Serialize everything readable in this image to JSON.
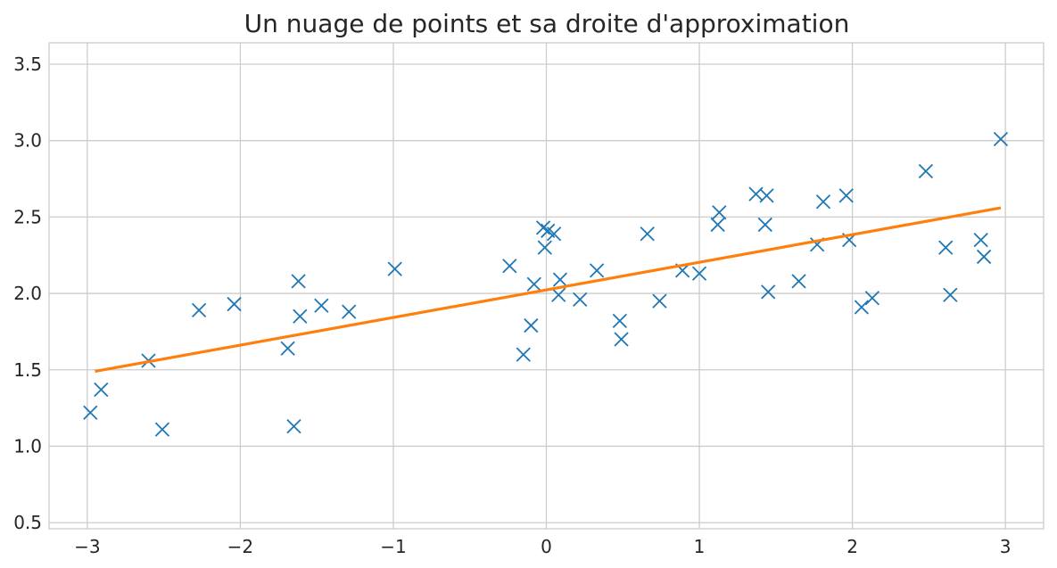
{
  "chart_data": {
    "type": "scatter",
    "title": "Un nuage de points et sa droite d'approximation",
    "xlabel": "",
    "ylabel": "",
    "xlim": [
      -3.25,
      3.25
    ],
    "ylim": [
      0.46,
      3.64
    ],
    "x_ticks": [
      -3,
      -2,
      -1,
      0,
      1,
      2,
      3
    ],
    "x_tick_labels": [
      "−3",
      "−2",
      "−1",
      "0",
      "1",
      "2",
      "3"
    ],
    "y_ticks": [
      0.5,
      1.0,
      1.5,
      2.0,
      2.5,
      3.0,
      3.5
    ],
    "y_tick_labels": [
      "0.5",
      "1.0",
      "1.5",
      "2.0",
      "2.5",
      "3.0",
      "3.5"
    ],
    "grid": true,
    "series": [
      {
        "kind": "scatter",
        "marker": "x",
        "color": "#1f77b4",
        "points": [
          [
            -2.98,
            1.22
          ],
          [
            -2.91,
            1.37
          ],
          [
            -2.6,
            1.56
          ],
          [
            -2.51,
            1.11
          ],
          [
            -2.27,
            1.89
          ],
          [
            -2.04,
            1.93
          ],
          [
            -1.69,
            1.64
          ],
          [
            -1.65,
            1.13
          ],
          [
            -1.62,
            2.08
          ],
          [
            -1.61,
            1.85
          ],
          [
            -1.47,
            1.92
          ],
          [
            -1.29,
            1.88
          ],
          [
            -0.99,
            2.16
          ],
          [
            -0.24,
            2.18
          ],
          [
            -0.15,
            1.6
          ],
          [
            -0.1,
            1.79
          ],
          [
            -0.08,
            2.06
          ],
          [
            -0.02,
            2.43
          ],
          [
            -0.01,
            2.3
          ],
          [
            0.01,
            2.41
          ],
          [
            0.05,
            2.39
          ],
          [
            0.08,
            1.99
          ],
          [
            0.09,
            2.09
          ],
          [
            0.22,
            1.96
          ],
          [
            0.33,
            2.15
          ],
          [
            0.48,
            1.82
          ],
          [
            0.49,
            1.7
          ],
          [
            0.66,
            2.39
          ],
          [
            0.74,
            1.95
          ],
          [
            0.89,
            2.15
          ],
          [
            1.0,
            2.13
          ],
          [
            1.12,
            2.45
          ],
          [
            1.13,
            2.53
          ],
          [
            1.37,
            2.65
          ],
          [
            1.43,
            2.45
          ],
          [
            1.44,
            2.64
          ],
          [
            1.45,
            2.01
          ],
          [
            1.65,
            2.08
          ],
          [
            1.77,
            2.32
          ],
          [
            1.81,
            2.6
          ],
          [
            1.96,
            2.64
          ],
          [
            1.98,
            2.35
          ],
          [
            2.06,
            1.91
          ],
          [
            2.13,
            1.97
          ],
          [
            2.48,
            2.8
          ],
          [
            2.61,
            2.3
          ],
          [
            2.64,
            1.99
          ],
          [
            2.84,
            2.35
          ],
          [
            2.86,
            2.24
          ],
          [
            2.97,
            3.01
          ]
        ]
      },
      {
        "kind": "line",
        "color": "#ff7f0e",
        "points": [
          [
            -2.95,
            1.49
          ],
          [
            2.97,
            2.56
          ]
        ]
      }
    ]
  }
}
